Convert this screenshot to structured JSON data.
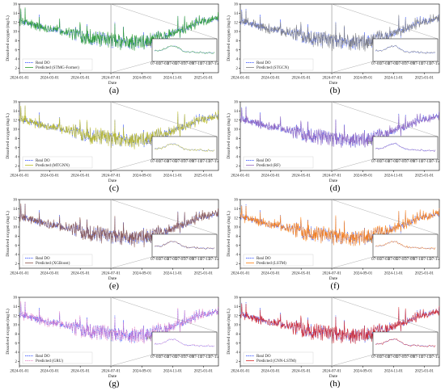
{
  "figure": {
    "panels": [
      {
        "letter": "(a)",
        "predicted_label": "Predicted (STMG-Former)",
        "pred_color": "#2ca02c",
        "pred_dash": false,
        "pred_noise": 0.55,
        "pred_bias": 0.0
      },
      {
        "letter": "(b)",
        "predicted_label": "Predicted (STGCN)",
        "pred_color": "#7f7f7f",
        "pred_dash": false,
        "pred_noise": 0.6,
        "pred_bias": 0.0
      },
      {
        "letter": "(c)",
        "predicted_label": "Predicted (MTGNN)",
        "pred_color": "#bcbd22",
        "pred_dash": false,
        "pred_noise": 0.6,
        "pred_bias": 0.0
      },
      {
        "letter": "(d)",
        "predicted_label": "Predicted (RF)",
        "pred_color": "#9467bd",
        "pred_dash": false,
        "pred_noise": 0.35,
        "pred_bias": 0.0
      },
      {
        "letter": "(e)",
        "predicted_label": "Predicted (XGBoost)",
        "pred_color": "#8c564b",
        "pred_dash": false,
        "pred_noise": 0.5,
        "pred_bias": 0.2
      },
      {
        "letter": "(f)",
        "predicted_label": "Predicted (LSTM)",
        "pred_color": "#ff7f0e",
        "pred_dash": false,
        "pred_noise": 0.5,
        "pred_bias": 0.2
      },
      {
        "letter": "(g)",
        "predicted_label": "Predicted (GRU)",
        "pred_color": "#e377c2",
        "pred_dash": true,
        "pred_noise": 0.5,
        "pred_bias": 0.0
      },
      {
        "letter": "(h)",
        "predicted_label": "Predicted (CNN-LSTM)",
        "pred_color": "#d62728",
        "pred_dash": false,
        "pred_noise": 0.45,
        "pred_bias": 0.0
      }
    ]
  },
  "chart_data": {
    "type": "line",
    "xlabel": "Date",
    "ylabel": "Dissolved oxygen (mg/L)",
    "x_ticks": [
      "2024-01-01",
      "2024-03-01",
      "2024-05-01",
      "2024-07-01",
      "2024-09-01",
      "2024-11-01",
      "2025-01-01"
    ],
    "x_range": [
      "2024-01-01",
      "2025-01-31"
    ],
    "y_ticks": [
      2,
      4,
      6,
      8,
      10,
      12,
      14,
      16
    ],
    "ylim": [
      1,
      16
    ],
    "legend_position": "lower-left",
    "inset_x_ticks": [
      "07-01",
      "07-03",
      "07-05",
      "07-07",
      "07-09",
      "07-11",
      "07-13",
      "07-15"
    ],
    "inset_y_ticks": [
      10
    ],
    "real_series": {
      "name": "Real DO",
      "color": "#1f3fff",
      "x": [
        "2024-01-01",
        "2024-02-01",
        "2024-03-01",
        "2024-04-01",
        "2024-05-01",
        "2024-06-01",
        "2024-07-01",
        "2024-08-01",
        "2024-09-01",
        "2024-10-01",
        "2024-11-01",
        "2024-12-01",
        "2025-01-01",
        "2025-01-31"
      ],
      "values": [
        12.2,
        11.3,
        10.6,
        10.0,
        9.2,
        8.4,
        7.9,
        7.5,
        7.6,
        8.3,
        9.6,
        11.0,
        12.4,
        13.0
      ]
    }
  }
}
